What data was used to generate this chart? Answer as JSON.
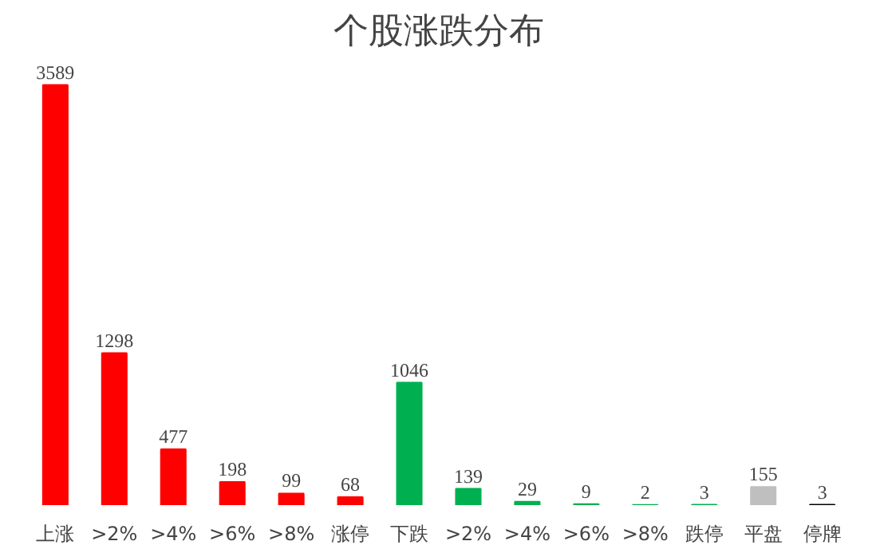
{
  "chart_data": {
    "type": "bar",
    "title": "个股涨跌分布",
    "categories": [
      "上涨",
      ">2%",
      ">4%",
      ">6%",
      ">8%",
      "涨停",
      "下跌",
      ">2%",
      ">4%",
      ">6%",
      ">8%",
      "跌停",
      "平盘",
      "停牌"
    ],
    "values": [
      3589,
      1298,
      477,
      198,
      99,
      68,
      1046,
      139,
      29,
      9,
      2,
      3,
      155,
      3
    ],
    "colors": [
      "#ff0000",
      "#ff0000",
      "#ff0000",
      "#ff0000",
      "#ff0000",
      "#ff0000",
      "#00b050",
      "#00b050",
      "#00b050",
      "#00b050",
      "#00b050",
      "#00b050",
      "#bfbfbf",
      "#000000"
    ],
    "data_labels": true,
    "grid": false
  }
}
